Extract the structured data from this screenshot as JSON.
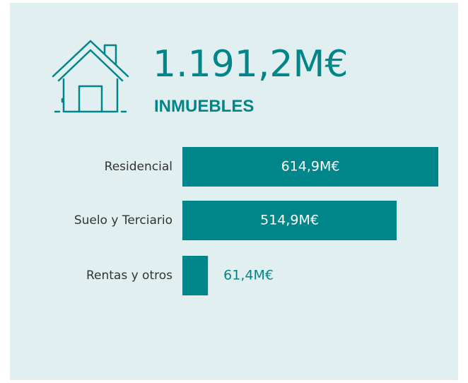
{
  "chart_data": {
    "type": "bar",
    "orientation": "horizontal",
    "title": "1.191,2M€",
    "subtitle": "INMUEBLES",
    "categories": [
      "Residencial",
      "Suelo y Terciario",
      "Rentas y otros"
    ],
    "values": [
      614.9,
      514.9,
      61.4
    ],
    "value_labels": [
      "614,9M€",
      "514,9M€",
      "61,4M€"
    ],
    "color": "#00868a"
  }
}
